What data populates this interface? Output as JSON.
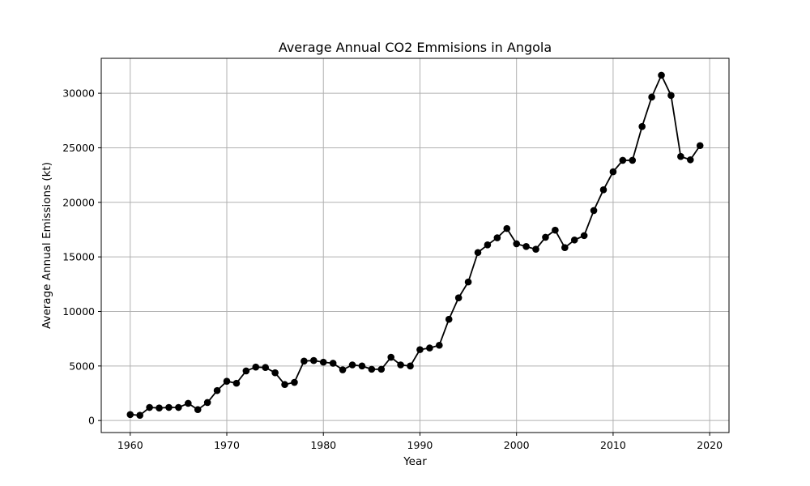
{
  "chart_data": {
    "type": "line",
    "title": "Average Annual CO2 Emmisions in Angola",
    "xlabel": "Year",
    "ylabel": "Average Annual Emissions (kt)",
    "xlim": [
      1957,
      2022
    ],
    "ylim": [
      -1100,
      33200
    ],
    "xticks": [
      1960,
      1970,
      1980,
      1990,
      2000,
      2010,
      2020
    ],
    "yticks": [
      0,
      5000,
      10000,
      15000,
      20000,
      25000,
      30000
    ],
    "grid": true,
    "line_color": "#000000",
    "marker": "circle",
    "series": [
      {
        "x": [
          1960,
          1961,
          1962,
          1963,
          1964,
          1965,
          1966,
          1967,
          1968,
          1969,
          1970,
          1971,
          1972,
          1973,
          1974,
          1975,
          1976,
          1977,
          1978,
          1979,
          1980,
          1981,
          1982,
          1983,
          1984,
          1985,
          1986,
          1987,
          1988,
          1989,
          1990,
          1991,
          1992,
          1993,
          1994,
          1995,
          1996,
          1997,
          1998,
          1999,
          2000,
          2001,
          2002,
          2003,
          2004,
          2005,
          2006,
          2007,
          2008,
          2009,
          2010,
          2011,
          2012,
          2013,
          2014,
          2015,
          2016,
          2017,
          2018,
          2019
        ],
        "values": [
          550,
          480,
          1200,
          1150,
          1200,
          1200,
          1580,
          1000,
          1650,
          2750,
          3600,
          3420,
          4550,
          4900,
          4860,
          4380,
          3300,
          3500,
          5450,
          5500,
          5350,
          5250,
          4650,
          5100,
          5000,
          4700,
          4700,
          5800,
          5100,
          5000,
          6500,
          6650,
          6900,
          9280,
          11250,
          12700,
          15400,
          16100,
          16750,
          17600,
          16200,
          15950,
          15700,
          16800,
          17450,
          15850,
          16550,
          16950,
          19250,
          21150,
          22800,
          23850,
          23850,
          26950,
          29650,
          31650,
          29800,
          24200,
          23900,
          25200
        ]
      }
    ]
  }
}
